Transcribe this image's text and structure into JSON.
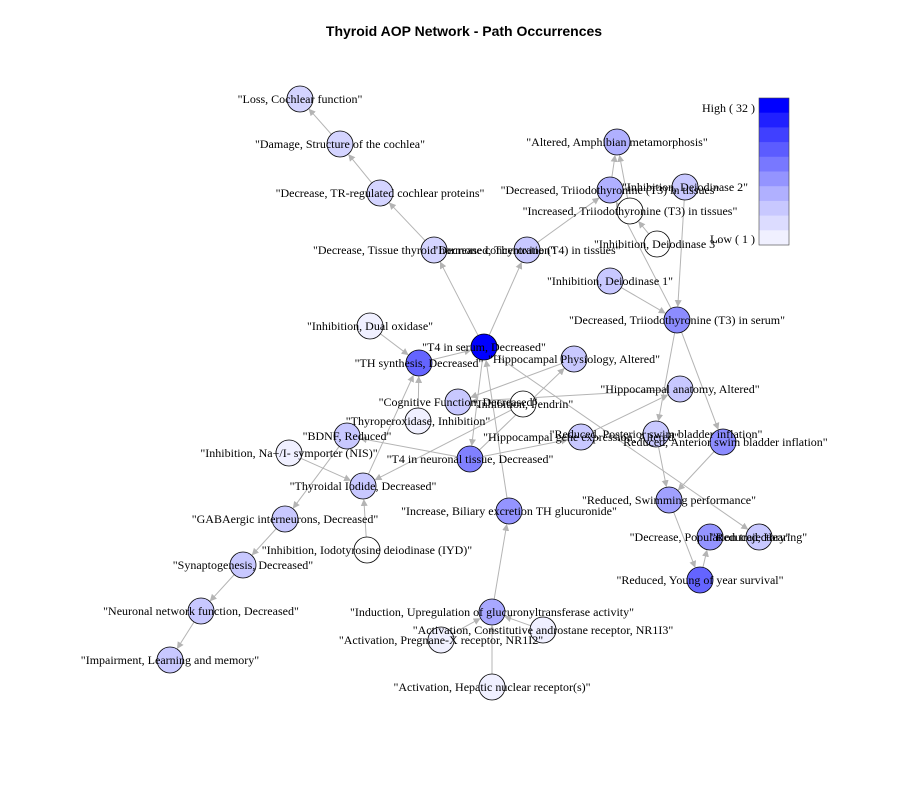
{
  "title": "Thyroid AOP Network - Path Occurrences",
  "legend": {
    "high_label": "High ( 32 )",
    "low_label": "Low ( 1 )",
    "colors": [
      "#0000ff",
      "#2020ff",
      "#4040ff",
      "#5c5cff",
      "#7878ff",
      "#9494ff",
      "#b0b0ff",
      "#c8c8ff",
      "#dcdcff",
      "#f0f0ff"
    ]
  },
  "nodes": [
    {
      "id": "loss_cochlear",
      "label": "\"Loss, Cochlear function\"",
      "color": "#d4d4ff"
    },
    {
      "id": "damage_cochlea",
      "label": "\"Damage, Structure of the cochlea\"",
      "color": "#d4d4ff"
    },
    {
      "id": "decrease_tr",
      "label": "\"Decrease, TR-regulated cochlear proteins\"",
      "color": "#d4d4ff"
    },
    {
      "id": "decrease_tissue",
      "label": "\"Decrease, Tissue thyroid hormone concentration\"",
      "color": "#d4d4ff"
    },
    {
      "id": "decreased_t4tissues",
      "label": "\"Decreased, Thyroxine (T4) in tissues\"",
      "color": "#c8c8ff"
    },
    {
      "id": "altered_amphibian",
      "label": "\"Altered, Amphibian metamorphosis\"",
      "color": "#b0b0ff"
    },
    {
      "id": "decreased_t3tissues",
      "label": "\"Decreased, Triiodothyronine (T3) in tissues\"",
      "color": "#b0b0ff"
    },
    {
      "id": "inhibition_d2",
      "label": "\"Inhibition, Deiodinase 2\"",
      "color": "#c8c8ff"
    },
    {
      "id": "increased_t3tissues",
      "label": "\"Increased, Triiodothyronine (T3) in tissues\"",
      "color": "#ffffff"
    },
    {
      "id": "inhibition_d3",
      "label": "\"Inhibition, Deiodinase 3\"",
      "color": "#ffffff"
    },
    {
      "id": "inhibition_d1",
      "label": "\"Inhibition, Deiodinase 1\"",
      "color": "#c8c8ff"
    },
    {
      "id": "decreased_t3serum",
      "label": "\"Decreased, Triiodothyronine (T3) in serum\"",
      "color": "#8c8cff"
    },
    {
      "id": "inhibition_duox",
      "label": "\"Inhibition, Dual oxidase\"",
      "color": "#f0f0ff"
    },
    {
      "id": "t4_serum",
      "label": "\"T4 in serum, Decreased\"",
      "color": "#0000ff"
    },
    {
      "id": "th_synthesis",
      "label": "\"TH synthesis, Decreased\"",
      "color": "#6464ff"
    },
    {
      "id": "hippo_physiology",
      "label": "\"Hippocampal Physiology, Altered\"",
      "color": "#c8c8ff"
    },
    {
      "id": "hippo_anatomy",
      "label": "\"Hippocampal anatomy, Altered\"",
      "color": "#c8c8ff"
    },
    {
      "id": "cognitive",
      "label": "\"Cognitive Function, Decreased\"",
      "color": "#c8c8ff"
    },
    {
      "id": "inhibition_pendrin",
      "label": "\"Inhibition, Pendrin\"",
      "color": "#ffffff"
    },
    {
      "id": "thyroperoxidase",
      "label": "\"Thyroperoxidase, Inhibition\"",
      "color": "#f0f0ff"
    },
    {
      "id": "bdnf",
      "label": "\"BDNF, Reduced\"",
      "color": "#c8c8ff"
    },
    {
      "id": "hippo_gene",
      "label": "\"Hippocampal gene expression, Altered\"",
      "color": "#c8c8ff"
    },
    {
      "id": "reduced_posterior",
      "label": "\"Reduced, Posterior swim bladder inflation\"",
      "color": "#c8c8ff"
    },
    {
      "id": "reduced_anterior",
      "label": "\"Reduced, Anterior swim bladder inflation\"",
      "color": "#8c8cff"
    },
    {
      "id": "inhibition_nis",
      "label": "\"Inhibition, Na+/I- symporter (NIS)\"",
      "color": "#f0f0ff"
    },
    {
      "id": "t4_neuronal",
      "label": "\"T4 in neuronal tissue, Decreased\"",
      "color": "#8080ff"
    },
    {
      "id": "thyroidal_iodide",
      "label": "\"Thyroidal Iodide, Decreased\"",
      "color": "#c8c8ff"
    },
    {
      "id": "reduced_swimming",
      "label": "\"Reduced, Swimming performance\"",
      "color": "#a0a0ff"
    },
    {
      "id": "gabaergic",
      "label": "\"GABAergic interneurons, Decreased\"",
      "color": "#c8c8ff"
    },
    {
      "id": "increase_biliary",
      "label": "\"Increase, Biliary excretion TH glucuronide\"",
      "color": "#9494ff"
    },
    {
      "id": "decrease_population",
      "label": "\"Decrease, Population trajectory\"",
      "color": "#9494ff"
    },
    {
      "id": "reduced_hearing",
      "label": "\"Reduced, Hearing\"",
      "color": "#c8c8ff"
    },
    {
      "id": "inhibition_iyd",
      "label": "\"Inhibition, Iodotyrosine deiodinase (IYD)\"",
      "color": "#ffffff"
    },
    {
      "id": "synaptogenesis",
      "label": "\"Synaptogenesis, Decreased\"",
      "color": "#c8c8ff"
    },
    {
      "id": "reduced_young",
      "label": "\"Reduced, Young of year survival\"",
      "color": "#6464ff"
    },
    {
      "id": "neuronal_network",
      "label": "\"Neuronal network function, Decreased\"",
      "color": "#c8c8ff"
    },
    {
      "id": "induction_ugt",
      "label": "\"Induction, Upregulation of glucuronyltransferase activity\"",
      "color": "#a8a8ff"
    },
    {
      "id": "activation_car",
      "label": "\"Activation, Constitutive androstane receptor, NR1I3\"",
      "color": "#f0f0ff"
    },
    {
      "id": "activation_pxr",
      "label": "\"Activation, Pregnane-X receptor, NR1I2\"",
      "color": "#f0f0ff"
    },
    {
      "id": "impairment_learning",
      "label": "\"Impairment, Learning and memory\"",
      "color": "#c8c8ff"
    },
    {
      "id": "activation_hnr",
      "label": "\"Activation, Hepatic nuclear receptor(s)\"",
      "color": "#f0f0ff"
    }
  ],
  "edges": [
    [
      "damage_cochlea",
      "loss_cochlear"
    ],
    [
      "decrease_tr",
      "damage_cochlea"
    ],
    [
      "decrease_tissue",
      "decrease_tr"
    ],
    [
      "t4_serum",
      "decrease_tissue"
    ],
    [
      "t4_serum",
      "decreased_t4tissues"
    ],
    [
      "decreased_t4tissues",
      "decreased_t3tissues"
    ],
    [
      "decreased_t3tissues",
      "altered_amphibian"
    ],
    [
      "increased_t3tissues",
      "altered_amphibian"
    ],
    [
      "inhibition_d2",
      "decreased_t3tissues"
    ],
    [
      "inhibition_d3",
      "increased_t3tissues"
    ],
    [
      "inhibition_d2",
      "decreased_t3serum"
    ],
    [
      "inhibition_d1",
      "decreased_t3serum"
    ],
    [
      "decreased_t3serum",
      "decreased_t3tissues"
    ],
    [
      "decreased_t3serum",
      "reduced_posterior"
    ],
    [
      "decreased_t3serum",
      "reduced_anterior"
    ],
    [
      "inhibition_duox",
      "th_synthesis"
    ],
    [
      "th_synthesis",
      "t4_serum"
    ],
    [
      "t4_serum",
      "t4_neuronal"
    ],
    [
      "t4_neuronal",
      "hippo_gene"
    ],
    [
      "t4_neuronal",
      "hippo_physiology"
    ],
    [
      "hippo_gene",
      "hippo_anatomy"
    ],
    [
      "hippo_anatomy",
      "cognitive"
    ],
    [
      "hippo_physiology",
      "cognitive"
    ],
    [
      "thyroperoxidase",
      "th_synthesis"
    ],
    [
      "thyroidal_iodide",
      "th_synthesis"
    ],
    [
      "inhibition_pendrin",
      "thyroidal_iodide"
    ],
    [
      "inhibition_nis",
      "thyroidal_iodide"
    ],
    [
      "inhibition_iyd",
      "thyroidal_iodide"
    ],
    [
      "t4_neuronal",
      "bdnf"
    ],
    [
      "bdnf",
      "gabaergic"
    ],
    [
      "gabaergic",
      "synaptogenesis"
    ],
    [
      "synaptogenesis",
      "neuronal_network"
    ],
    [
      "neuronal_network",
      "impairment_learning"
    ],
    [
      "reduced_posterior",
      "reduced_swimming"
    ],
    [
      "reduced_anterior",
      "reduced_swimming"
    ],
    [
      "reduced_swimming",
      "reduced_young"
    ],
    [
      "reduced_young",
      "decrease_population"
    ],
    [
      "t4_serum",
      "reduced_hearing"
    ],
    [
      "increase_biliary",
      "t4_serum"
    ],
    [
      "induction_ugt",
      "increase_biliary"
    ],
    [
      "activation_car",
      "induction_ugt"
    ],
    [
      "activation_pxr",
      "induction_ugt"
    ],
    [
      "activation_hnr",
      "induction_ugt"
    ]
  ]
}
